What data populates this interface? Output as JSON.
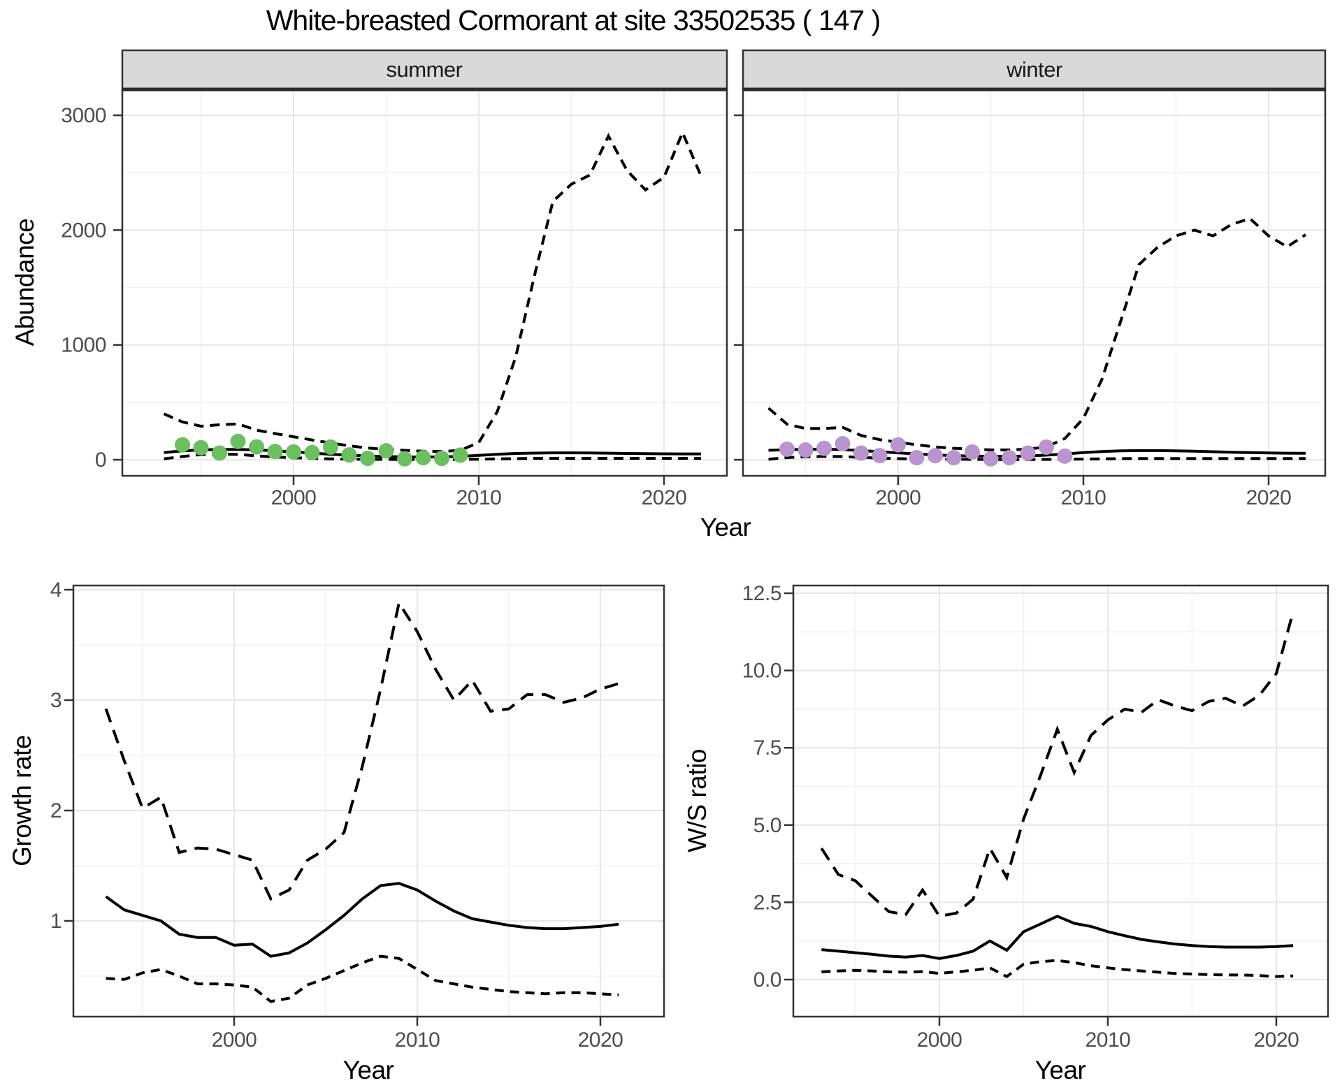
{
  "title": "White-breasted Cormorant at site 33502535 ( 147 )",
  "colors": {
    "fit_line": "#000000",
    "ci_line": "#000000",
    "summer_points": "#6abf5f",
    "winter_points": "#b895cf",
    "strip_background": "#d9d9d9",
    "tick_text": "#4d4d4d",
    "panel_border": "#333333"
  },
  "chart_data": [
    {
      "type": "line",
      "name": "abundance-summer",
      "facet": "summer",
      "ylabel": "Abundance",
      "xlabel": "Year",
      "legend": "none",
      "grid": true,
      "xlim": [
        1991.2,
        2023.5
      ],
      "ylim": [
        -135,
        3230
      ],
      "x_ticks": [
        2000,
        2010,
        2020
      ],
      "x_tick_labels": [
        "2000",
        "2010",
        "2020"
      ],
      "y_ticks": [
        0,
        1000,
        2000,
        3000
      ],
      "y_tick_labels": [
        "0",
        "1000",
        "2000",
        "3000"
      ],
      "series": [
        {
          "name": "fit",
          "style": "solid",
          "x": [
            1993,
            1994,
            1995,
            1996,
            1997,
            1998,
            1999,
            2000,
            2001,
            2002,
            2003,
            2004,
            2005,
            2006,
            2007,
            2008,
            2009,
            2010,
            2011,
            2012,
            2013,
            2014,
            2015,
            2016,
            2017,
            2018,
            2019,
            2020,
            2021,
            2022
          ],
          "y": [
            62,
            78,
            86,
            90,
            90,
            86,
            78,
            68,
            58,
            48,
            40,
            33,
            28,
            25,
            24,
            25,
            30,
            38,
            48,
            55,
            58,
            60,
            60,
            59,
            57,
            55,
            53,
            52,
            51,
            51
          ]
        },
        {
          "name": "upper_ci",
          "style": "dashed",
          "x": [
            1993,
            1994,
            1995,
            1996,
            1997,
            1998,
            1999,
            2000,
            2001,
            2002,
            2003,
            2004,
            2005,
            2006,
            2007,
            2008,
            2009,
            2010,
            2011,
            2012,
            2013,
            2014,
            2015,
            2016,
            2017,
            2018,
            2019,
            2020,
            2021,
            2022
          ],
          "y": [
            400,
            330,
            292,
            305,
            312,
            258,
            228,
            200,
            172,
            146,
            122,
            102,
            90,
            82,
            74,
            72,
            82,
            150,
            420,
            900,
            1600,
            2250,
            2400,
            2480,
            2820,
            2520,
            2350,
            2460,
            2850,
            2470
          ]
        },
        {
          "name": "lower_ci",
          "style": "dashed",
          "x": [
            1993,
            1994,
            1995,
            1996,
            1997,
            1998,
            1999,
            2000,
            2001,
            2002,
            2003,
            2004,
            2005,
            2006,
            2007,
            2008,
            2009,
            2010,
            2011,
            2012,
            2013,
            2014,
            2015,
            2016,
            2017,
            2018,
            2019,
            2020,
            2021,
            2022
          ],
          "y": [
            8,
            28,
            45,
            50,
            46,
            34,
            24,
            17,
            12,
            8,
            5,
            4,
            3,
            2,
            2,
            2,
            3,
            5,
            8,
            10,
            12,
            12,
            12,
            12,
            12,
            12,
            12,
            12,
            12,
            12
          ]
        },
        {
          "name": "observations",
          "style": "points",
          "color": "#6abf5f",
          "x": [
            1994,
            1995,
            1996,
            1997,
            1998,
            1999,
            2000,
            2001,
            2002,
            2003,
            2004,
            2005,
            2006,
            2007,
            2008,
            2009
          ],
          "y": [
            130,
            105,
            58,
            160,
            112,
            72,
            68,
            62,
            110,
            42,
            12,
            78,
            8,
            18,
            12,
            40
          ]
        }
      ]
    },
    {
      "type": "line",
      "name": "abundance-winter",
      "facet": "winter",
      "ylabel": "Abundance",
      "xlabel": "Year",
      "legend": "none",
      "grid": true,
      "xlim": [
        1991.2,
        2023.5
      ],
      "ylim": [
        -135,
        3230
      ],
      "x_ticks": [
        2000,
        2010,
        2020
      ],
      "x_tick_labels": [
        "2000",
        "2010",
        "2020"
      ],
      "y_ticks": [
        0,
        1000,
        2000,
        3000
      ],
      "y_tick_labels": [
        "0",
        "1000",
        "2000",
        "3000"
      ],
      "series": [
        {
          "name": "fit",
          "style": "solid",
          "x": [
            1993,
            1994,
            1995,
            1996,
            1997,
            1998,
            1999,
            2000,
            2001,
            2002,
            2003,
            2004,
            2005,
            2006,
            2007,
            2008,
            2009,
            2010,
            2011,
            2012,
            2013,
            2014,
            2015,
            2016,
            2017,
            2018,
            2019,
            2020,
            2021,
            2022
          ],
          "y": [
            82,
            88,
            90,
            92,
            88,
            80,
            70,
            60,
            50,
            42,
            36,
            32,
            30,
            30,
            33,
            40,
            50,
            62,
            72,
            78,
            80,
            80,
            78,
            74,
            70,
            66,
            62,
            59,
            57,
            56
          ]
        },
        {
          "name": "upper_ci",
          "style": "dashed",
          "x": [
            1993,
            1994,
            1995,
            1996,
            1997,
            1998,
            1999,
            2000,
            2001,
            2002,
            2003,
            2004,
            2005,
            2006,
            2007,
            2008,
            2009,
            2010,
            2011,
            2012,
            2013,
            2014,
            2015,
            2016,
            2017,
            2018,
            2019,
            2020,
            2021,
            2022
          ],
          "y": [
            450,
            310,
            272,
            272,
            282,
            212,
            175,
            152,
            130,
            112,
            100,
            92,
            86,
            86,
            92,
            112,
            185,
            360,
            700,
            1200,
            1700,
            1850,
            1950,
            2000,
            1950,
            2050,
            2100,
            1950,
            1855,
            1960
          ]
        },
        {
          "name": "lower_ci",
          "style": "dashed",
          "x": [
            1993,
            1994,
            1995,
            1996,
            1997,
            1998,
            1999,
            2000,
            2001,
            2002,
            2003,
            2004,
            2005,
            2006,
            2007,
            2008,
            2009,
            2010,
            2011,
            2012,
            2013,
            2014,
            2015,
            2016,
            2017,
            2018,
            2019,
            2020,
            2021,
            2022
          ],
          "y": [
            5,
            18,
            26,
            30,
            28,
            20,
            14,
            10,
            7,
            5,
            4,
            3,
            2,
            2,
            2,
            3,
            4,
            6,
            8,
            10,
            11,
            11,
            11,
            11,
            11,
            11,
            11,
            11,
            11,
            11
          ]
        },
        {
          "name": "observations",
          "style": "points",
          "color": "#b895cf",
          "x": [
            1994,
            1995,
            1996,
            1997,
            1998,
            1999,
            2000,
            2001,
            2002,
            2003,
            2004,
            2005,
            2006,
            2007,
            2008,
            2009
          ],
          "y": [
            92,
            85,
            100,
            140,
            58,
            36,
            130,
            18,
            35,
            18,
            68,
            8,
            18,
            58,
            110,
            32
          ]
        }
      ]
    },
    {
      "type": "line",
      "name": "growth-rate",
      "ylabel": "Growth rate",
      "xlabel": "Year",
      "legend": "none",
      "grid": true,
      "xlim": [
        1991.2,
        2023.5
      ],
      "ylim": [
        0.13,
        4.03
      ],
      "x_ticks": [
        2000,
        2010,
        2020
      ],
      "x_tick_labels": [
        "2000",
        "2010",
        "2020"
      ],
      "y_ticks": [
        1,
        2,
        3,
        4
      ],
      "y_tick_labels": [
        "1",
        "2",
        "3",
        "4"
      ],
      "series": [
        {
          "name": "fit",
          "style": "solid",
          "x": [
            1993,
            1994,
            1995,
            1996,
            1997,
            1998,
            1999,
            2000,
            2001,
            2002,
            2003,
            2004,
            2005,
            2006,
            2007,
            2008,
            2009,
            2010,
            2011,
            2012,
            2013,
            2014,
            2015,
            2016,
            2017,
            2018,
            2019,
            2020,
            2021
          ],
          "y": [
            1.22,
            1.1,
            1.05,
            1.0,
            0.88,
            0.85,
            0.85,
            0.78,
            0.79,
            0.68,
            0.71,
            0.8,
            0.92,
            1.05,
            1.2,
            1.32,
            1.34,
            1.28,
            1.18,
            1.09,
            1.02,
            0.99,
            0.96,
            0.94,
            0.93,
            0.93,
            0.94,
            0.95,
            0.97
          ]
        },
        {
          "name": "upper_ci",
          "style": "longdash",
          "x": [
            1993,
            1994,
            1995,
            1996,
            1997,
            1998,
            1999,
            2000,
            2001,
            2002,
            2003,
            2004,
            2005,
            2006,
            2007,
            2008,
            2009,
            2010,
            2011,
            2012,
            2013,
            2014,
            2015,
            2016,
            2017,
            2018,
            2019,
            2020,
            2021
          ],
          "y": [
            2.92,
            2.45,
            2.02,
            2.12,
            1.62,
            1.66,
            1.65,
            1.6,
            1.55,
            1.2,
            1.28,
            1.55,
            1.65,
            1.8,
            2.4,
            3.1,
            3.88,
            3.62,
            3.28,
            3.0,
            3.18,
            2.9,
            2.92,
            3.05,
            3.05,
            2.98,
            3.02,
            3.1,
            3.15
          ]
        },
        {
          "name": "lower_ci",
          "style": "dashed",
          "x": [
            1993,
            1994,
            1995,
            1996,
            1997,
            1998,
            1999,
            2000,
            2001,
            2002,
            2003,
            2004,
            2005,
            2006,
            2007,
            2008,
            2009,
            2010,
            2011,
            2012,
            2013,
            2014,
            2015,
            2016,
            2017,
            2018,
            2019,
            2020,
            2021
          ],
          "y": [
            0.48,
            0.47,
            0.53,
            0.56,
            0.5,
            0.43,
            0.43,
            0.42,
            0.4,
            0.27,
            0.3,
            0.42,
            0.48,
            0.55,
            0.62,
            0.68,
            0.66,
            0.56,
            0.46,
            0.43,
            0.4,
            0.38,
            0.36,
            0.35,
            0.34,
            0.35,
            0.35,
            0.34,
            0.33
          ]
        }
      ]
    },
    {
      "type": "line",
      "name": "ws-ratio",
      "ylabel": "W/S ratio",
      "xlabel": "Year",
      "legend": "none",
      "grid": true,
      "xlim": [
        1991.2,
        2023.5
      ],
      "ylim": [
        -0.5,
        12.8
      ],
      "x_ticks": [
        2000,
        2010,
        2020
      ],
      "x_tick_labels": [
        "2000",
        "2010",
        "2020"
      ],
      "y_ticks": [
        0,
        2.5,
        5,
        7.5,
        10,
        12.5
      ],
      "y_tick_labels": [
        "0.0",
        "2.5",
        "5.0",
        "7.5",
        "10.0",
        "12.5"
      ],
      "series": [
        {
          "name": "fit",
          "style": "solid",
          "x": [
            1993,
            1994,
            1995,
            1996,
            1997,
            1998,
            1999,
            2000,
            2001,
            2002,
            2003,
            2004,
            2005,
            2006,
            2007,
            2008,
            2009,
            2010,
            2011,
            2012,
            2013,
            2014,
            2015,
            2016,
            2017,
            2018,
            2019,
            2020,
            2021
          ],
          "y": [
            0.97,
            0.92,
            0.87,
            0.82,
            0.76,
            0.73,
            0.78,
            0.68,
            0.78,
            0.92,
            1.25,
            0.95,
            1.55,
            1.8,
            2.05,
            1.82,
            1.72,
            1.55,
            1.42,
            1.3,
            1.22,
            1.15,
            1.1,
            1.07,
            1.05,
            1.05,
            1.05,
            1.07,
            1.1
          ]
        },
        {
          "name": "upper_ci",
          "style": "longdash",
          "x": [
            1993,
            1994,
            1995,
            1996,
            1997,
            1998,
            1999,
            2000,
            2001,
            2002,
            2003,
            2004,
            2005,
            2006,
            2007,
            2008,
            2009,
            2010,
            2011,
            2012,
            2013,
            2014,
            2015,
            2016,
            2017,
            2018,
            2019,
            2020,
            2021
          ],
          "y": [
            4.25,
            3.4,
            3.2,
            2.7,
            2.2,
            2.1,
            2.9,
            2.05,
            2.15,
            2.6,
            4.25,
            3.3,
            5.2,
            6.6,
            8.1,
            6.7,
            7.9,
            8.4,
            8.75,
            8.65,
            9.05,
            8.85,
            8.7,
            9.0,
            9.1,
            8.85,
            9.2,
            9.9,
            11.9
          ]
        },
        {
          "name": "lower_ci",
          "style": "dashed",
          "x": [
            1993,
            1994,
            1995,
            1996,
            1997,
            1998,
            1999,
            2000,
            2001,
            2002,
            2003,
            2004,
            2005,
            2006,
            2007,
            2008,
            2009,
            2010,
            2011,
            2012,
            2013,
            2014,
            2015,
            2016,
            2017,
            2018,
            2019,
            2020,
            2021
          ],
          "y": [
            0.25,
            0.28,
            0.3,
            0.28,
            0.25,
            0.24,
            0.26,
            0.2,
            0.25,
            0.3,
            0.38,
            0.1,
            0.5,
            0.58,
            0.62,
            0.55,
            0.45,
            0.38,
            0.32,
            0.28,
            0.24,
            0.2,
            0.18,
            0.16,
            0.15,
            0.15,
            0.13,
            0.1,
            0.12
          ]
        }
      ]
    }
  ]
}
